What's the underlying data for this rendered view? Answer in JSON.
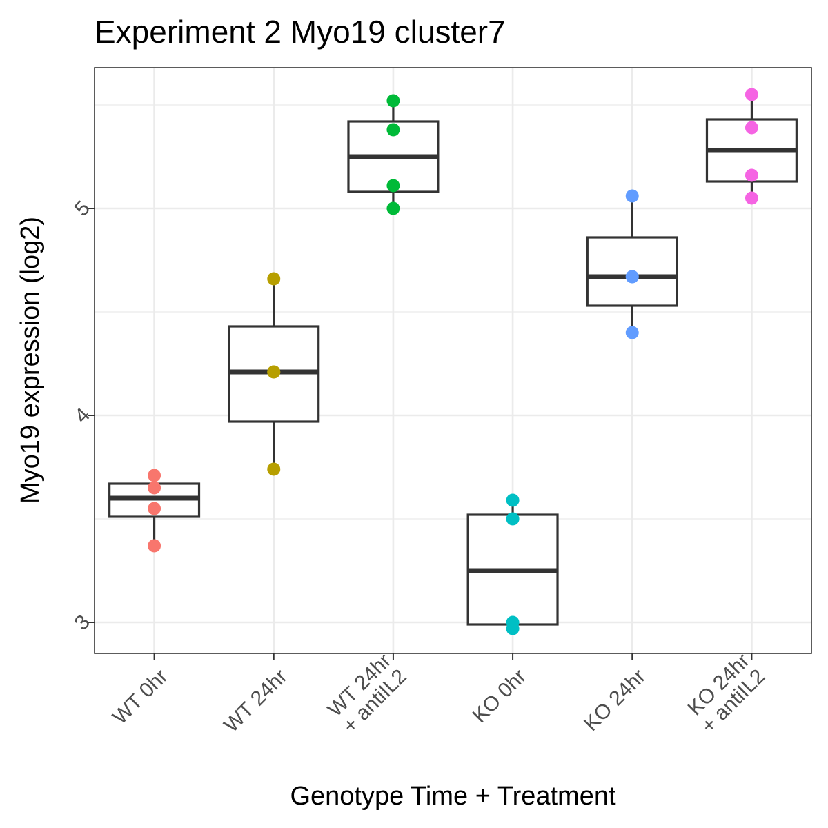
{
  "chart_data": {
    "type": "box",
    "title": "Experiment 2 Myo19 cluster7",
    "xlabel": "Genotype Time + Treatment",
    "ylabel": "Myo19 expression (log2)",
    "ylim": [
      2.85,
      5.68
    ],
    "yticks": [
      3,
      4,
      5
    ],
    "grid": true,
    "legend": "none",
    "categories": [
      {
        "label": [
          "WT 0hr"
        ],
        "color": "#F8766D",
        "points": [
          3.71,
          3.65,
          3.55,
          3.37
        ],
        "box": {
          "min": 3.37,
          "q1": 3.51,
          "median": 3.6,
          "q3": 3.67,
          "max": 3.71
        }
      },
      {
        "label": [
          "WT 24hr"
        ],
        "color": "#B79F00",
        "points": [
          4.66,
          4.21,
          4.21,
          3.74
        ],
        "box": {
          "min": 3.74,
          "q1": 3.97,
          "median": 4.21,
          "q3": 4.43,
          "max": 4.66
        }
      },
      {
        "label": [
          "WT 24hr",
          "+ antiIL2"
        ],
        "color": "#00BA38",
        "points": [
          5.52,
          5.38,
          5.11,
          5.0
        ],
        "box": {
          "min": 5.0,
          "q1": 5.08,
          "median": 5.25,
          "q3": 5.42,
          "max": 5.52
        }
      },
      {
        "label": [
          "KO 0hr"
        ],
        "color": "#00BFC4",
        "points": [
          3.59,
          3.5,
          3.0,
          2.97
        ],
        "box": {
          "min": 2.97,
          "q1": 2.99,
          "median": 3.25,
          "q3": 3.52,
          "max": 3.59
        }
      },
      {
        "label": [
          "KO 24hr"
        ],
        "color": "#619CFF",
        "points": [
          5.06,
          4.67,
          4.67,
          4.4
        ],
        "box": {
          "min": 4.4,
          "q1": 4.53,
          "median": 4.67,
          "q3": 4.86,
          "max": 5.06
        }
      },
      {
        "label": [
          "KO 24hr",
          "+ antiIL2"
        ],
        "color": "#F564E3",
        "points": [
          5.55,
          5.39,
          5.16,
          5.05
        ],
        "box": {
          "min": 5.05,
          "q1": 5.13,
          "median": 5.28,
          "q3": 5.43,
          "max": 5.55
        }
      }
    ]
  }
}
